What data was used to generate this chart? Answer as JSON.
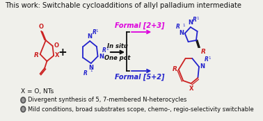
{
  "title": "This work: Switchable cycloadditions of allyl palladium intermediate",
  "title_fontsize": 7.2,
  "bg_color": "#f0f0eb",
  "bullet1": "Divergent synthesis of 5, 7-membered N-heterocycles",
  "bullet2": "Mild conditions, broad substrates scope, chemo-, regio-selectivity switchable",
  "bullet_fontsize": 6.0,
  "formal23_label": "Formal [2+3]",
  "formal52_label": "Formal [5+2]",
  "insitu_label": "In situ",
  "onepot_label": "One pot",
  "x_label": "X = O, NTs",
  "magenta": "#dd00dd",
  "blue": "#2222cc",
  "red": "#cc2222",
  "black": "#111111",
  "gray": "#555555"
}
